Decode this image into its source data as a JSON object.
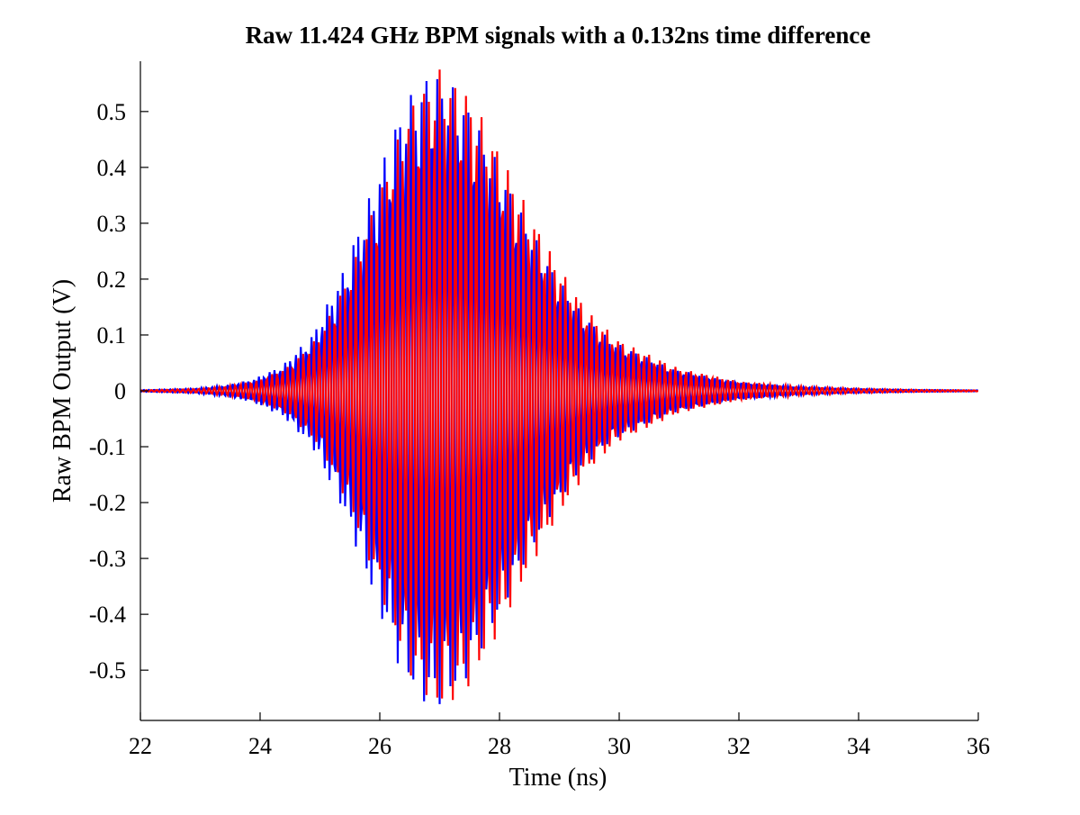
{
  "chart_data": {
    "type": "line",
    "title": "Raw 11.424 GHz BPM signals with a 0.132ns time difference",
    "xlabel": "Time (ns)",
    "ylabel": "Raw BPM Output (V)",
    "xlim": [
      22,
      36
    ],
    "ylim": [
      -0.59,
      0.59
    ],
    "x_ticks": [
      22,
      24,
      26,
      28,
      30,
      32,
      34,
      36
    ],
    "x_tick_labels": [
      "22",
      "24",
      "26",
      "28",
      "30",
      "32",
      "34",
      "36"
    ],
    "y_ticks": [
      0.5,
      0.4,
      0.3,
      0.2,
      0.1,
      0,
      -0.1,
      -0.2,
      -0.3,
      -0.4,
      -0.5
    ],
    "y_tick_labels": [
      "0.5",
      "0.4",
      "0.3",
      "0.2",
      "0.1",
      "0",
      "-0.1",
      "-0.2",
      "-0.3",
      "-0.4",
      "-0.5"
    ],
    "grid": false,
    "legend": "none",
    "carrier_frequency_ghz": 11.424,
    "time_difference_ns": 0.132,
    "series": [
      {
        "color": "#0000ff",
        "peak_time": 26.87,
        "peak_amplitude": 0.575
      },
      {
        "color": "#ff0000",
        "peak_time": 27.0,
        "peak_amplitude": 0.575
      }
    ],
    "envelope_time": [
      22,
      23,
      23.5,
      24,
      24.5,
      25,
      25.5,
      26,
      26.5,
      27,
      27.5,
      28,
      28.5,
      29,
      29.5,
      30,
      31,
      32,
      33,
      34,
      35,
      36
    ],
    "envelope_amplitude": [
      0.001,
      0.004,
      0.009,
      0.02,
      0.045,
      0.1,
      0.21,
      0.36,
      0.51,
      0.575,
      0.53,
      0.43,
      0.32,
      0.22,
      0.14,
      0.09,
      0.04,
      0.017,
      0.008,
      0.004,
      0.002,
      0.001
    ]
  }
}
